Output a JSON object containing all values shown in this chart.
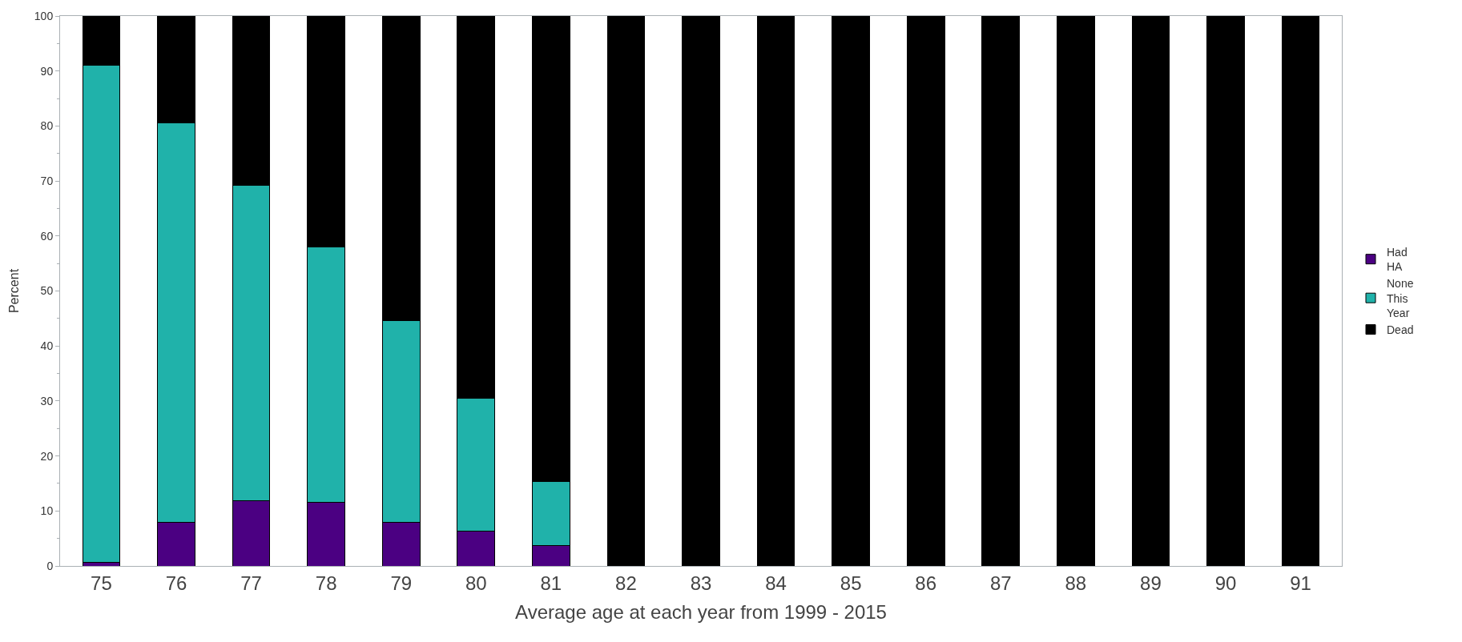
{
  "chart_data": {
    "type": "bar",
    "stacked": true,
    "xlabel": "Average age at each year from 1999 - 2015",
    "ylabel": "Percent",
    "categories": [
      "75",
      "76",
      "77",
      "78",
      "79",
      "80",
      "81",
      "82",
      "83",
      "84",
      "85",
      "86",
      "87",
      "88",
      "89",
      "90",
      "91"
    ],
    "series": [
      {
        "name": "Had HA",
        "color": "#4b0082",
        "values": [
          0.7,
          8,
          11.9,
          11.6,
          8,
          6.4,
          3.7,
          0,
          0,
          0,
          0,
          0,
          0,
          0,
          0,
          0,
          0
        ]
      },
      {
        "name": "None This Year",
        "color": "#20b2aa",
        "values": [
          90.3,
          72.6,
          57.3,
          46.4,
          36.6,
          24.1,
          11.7,
          0,
          0,
          0,
          0,
          0,
          0,
          0,
          0,
          0,
          0
        ]
      },
      {
        "name": "Dead",
        "color": "#000000",
        "values": [
          9,
          19.4,
          30.8,
          42,
          55.4,
          69.5,
          84.6,
          100,
          100,
          100,
          100,
          100,
          100,
          100,
          100,
          100,
          100
        ]
      }
    ],
    "ylim": [
      0,
      100
    ],
    "yticks": [
      0,
      10,
      20,
      30,
      40,
      50,
      60,
      70,
      80,
      90,
      100
    ],
    "legend": "right"
  }
}
